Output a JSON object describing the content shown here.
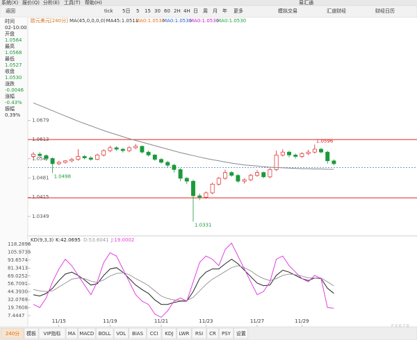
{
  "window": {
    "menu": [
      "系统(X)",
      "报价(Q)",
      "分析(E)",
      "工具(T)",
      "帮助(H)"
    ],
    "title": "易汇通"
  },
  "toolbar": {
    "back": "返回",
    "periods": [
      "tick",
      "5日",
      "5",
      "15",
      "30",
      "60",
      "2H",
      "4H",
      "日",
      "周",
      "月",
      "年",
      "更多"
    ],
    "links": [
      "模拟交易",
      "汇道财经",
      "财经日历"
    ]
  },
  "info_panel": {
    "rows": [
      {
        "label": "时间",
        "value": "02-10:00"
      },
      {
        "label": "开盘",
        "value": "1.0564"
      },
      {
        "label": "最高",
        "value": "1.0568"
      },
      {
        "label": "最低",
        "value": "1.0527"
      },
      {
        "label": "收盘",
        "value": "1.0530"
      },
      {
        "label": "涨跌",
        "value": "-0.0046"
      },
      {
        "label": "涨幅",
        "value": "-0.43%"
      },
      {
        "label": "振幅",
        "value": "0.39%"
      }
    ]
  },
  "chart_data": [
    {
      "type": "candlestick",
      "title": "欧元美元[240分]",
      "legend": [
        {
          "text": "MA(45,0,0,0,0)",
          "color": "#333333"
        },
        {
          "text": "MA45:1.0511",
          "color": "#333333"
        },
        {
          "text": "MA0:1.0530",
          "color": "#e07020"
        },
        {
          "text": "MA0:1.0530",
          "color": "#2060c0"
        },
        {
          "text": "MA0:1.0530",
          "color": "#c020c0"
        },
        {
          "text": "MA0:1.0530",
          "color": "#20a040"
        }
      ],
      "open": [
        1.0555,
        1.0563,
        1.0558,
        1.0548,
        1.053,
        1.0535,
        1.054,
        1.0545,
        1.0555,
        1.055,
        1.0545,
        1.056,
        1.0575,
        1.0585,
        1.058,
        1.0575,
        1.0585,
        1.059,
        1.057,
        1.056,
        1.0545,
        1.0535,
        1.0525,
        1.051,
        1.048,
        1.047,
        1.042,
        1.0415,
        1.043,
        1.046,
        1.048,
        1.05,
        1.049,
        1.047,
        1.0475,
        1.049,
        1.05,
        1.0485,
        1.051,
        1.056,
        1.057,
        1.056,
        1.0555,
        1.0565,
        1.057,
        1.058,
        1.057,
        1.054
      ],
      "high": [
        1.057,
        1.057,
        1.0562,
        1.0552,
        1.054,
        1.0542,
        1.055,
        1.058,
        1.056,
        1.0556,
        1.0565,
        1.058,
        1.0592,
        1.059,
        1.0584,
        1.059,
        1.0598,
        1.0592,
        1.0575,
        1.0563,
        1.055,
        1.054,
        1.053,
        1.0515,
        1.0485,
        1.0475,
        1.0428,
        1.0435,
        1.0465,
        1.0485,
        1.051,
        1.0505,
        1.0495,
        1.048,
        1.0495,
        1.0508,
        1.0503,
        1.0515,
        1.0575,
        1.058,
        1.0575,
        1.0565,
        1.057,
        1.0578,
        1.0596,
        1.0585,
        1.0575,
        1.0545
      ],
      "low": [
        1.055,
        1.0552,
        1.054,
        1.0498,
        1.0525,
        1.053,
        1.0535,
        1.054,
        1.0545,
        1.054,
        1.0542,
        1.0555,
        1.057,
        1.0575,
        1.0568,
        1.057,
        1.058,
        1.0565,
        1.0555,
        1.054,
        1.053,
        1.0518,
        1.05,
        1.047,
        1.046,
        1.0331,
        1.0405,
        1.041,
        1.0425,
        1.0455,
        1.0475,
        1.0485,
        1.0465,
        1.0462,
        1.047,
        1.0485,
        1.048,
        1.048,
        1.0505,
        1.0555,
        1.0552,
        1.0548,
        1.055,
        1.056,
        1.0565,
        1.0565,
        1.053,
        1.0525
      ],
      "close": [
        1.0563,
        1.0558,
        1.0548,
        1.053,
        1.0535,
        1.054,
        1.0545,
        1.0555,
        1.055,
        1.0545,
        1.056,
        1.0575,
        1.0585,
        1.058,
        1.0575,
        1.0585,
        1.059,
        1.057,
        1.056,
        1.0545,
        1.0535,
        1.0525,
        1.051,
        1.048,
        1.047,
        1.042,
        1.0415,
        1.043,
        1.046,
        1.048,
        1.05,
        1.049,
        1.047,
        1.0475,
        1.049,
        1.05,
        1.0485,
        1.051,
        1.056,
        1.057,
        1.056,
        1.0555,
        1.0565,
        1.057,
        1.058,
        1.057,
        1.054,
        1.053
      ],
      "up_color": "#e02020",
      "down_color": "#1a9a3a",
      "series": [
        {
          "color": "#888888",
          "values": [
            1.0739,
            1.073,
            1.0721,
            1.0712,
            1.0703,
            1.0694,
            1.0685,
            1.0676,
            1.0668,
            1.066,
            1.0652,
            1.0644,
            1.0637,
            1.063,
            1.0623,
            1.0616,
            1.061,
            1.0604,
            1.0598,
            1.0592,
            1.0586,
            1.058,
            1.0574,
            1.0568,
            1.0563,
            1.0558,
            1.0553,
            1.0548,
            1.0544,
            1.054,
            1.0536,
            1.0532,
            1.0529,
            1.0526,
            1.0524,
            1.0522,
            1.052,
            1.0518,
            1.0517,
            1.0516,
            1.0515,
            1.0514,
            1.0513,
            1.0513,
            1.0512,
            1.0512,
            1.0511,
            1.0511
          ]
        }
      ],
      "hlines": [
        {
          "value": 1.0613,
          "color": "#e02020"
        },
        {
          "value": 1.0413,
          "color": "#e02020"
        }
      ],
      "price_line": {
        "value": 1.0517,
        "color": "#5a8ac6"
      },
      "annotations": [
        {
          "index": 3,
          "value": 1.0498
        },
        {
          "index": 25,
          "value": 1.0331
        },
        {
          "index": 44,
          "value": 1.0596
        }
      ],
      "ylim": [
        1.0294,
        1.1009
      ],
      "yticks": [
        1.0679,
        1.0613,
        1.0547,
        1.0481,
        1.0415,
        1.0349
      ]
    },
    {
      "type": "line",
      "title": "KD(9,3,3)",
      "categories": [
        null,
        null,
        null,
        null,
        "11/15",
        null,
        null,
        null,
        null,
        null,
        null,
        null,
        "11/19",
        null,
        null,
        null,
        null,
        null,
        null,
        null,
        "11/21",
        null,
        null,
        null,
        null,
        null,
        null,
        "11/23",
        null,
        null,
        null,
        null,
        null,
        null,
        null,
        "11/27",
        null,
        null,
        null,
        null,
        null,
        null,
        "11/29",
        null,
        null,
        null,
        null,
        null
      ],
      "series": [
        {
          "name": "K:42.0695",
          "color": "#222222",
          "values": [
            40,
            38,
            42,
            50,
            62,
            72,
            75,
            70,
            63,
            55,
            57,
            70,
            80,
            82,
            75,
            65,
            55,
            48,
            42,
            32,
            25,
            25,
            28,
            30,
            30,
            45,
            65,
            75,
            80,
            80,
            88,
            95,
            88,
            78,
            68,
            58,
            54,
            55,
            70,
            78,
            75,
            70,
            65,
            62,
            66,
            65,
            50,
            42.0695
          ]
        },
        {
          "name": "D:53.6041",
          "color": "#999999",
          "values": [
            48,
            46,
            45,
            46,
            52,
            58,
            64,
            66,
            65,
            61,
            59,
            63,
            69,
            73,
            74,
            71,
            65,
            60,
            54,
            46,
            38,
            34,
            32,
            31,
            31,
            36,
            46,
            56,
            64,
            70,
            76,
            82,
            85,
            82,
            77,
            70,
            65,
            62,
            65,
            70,
            72,
            71,
            69,
            66,
            66,
            66,
            60,
            53.6041
          ]
        },
        {
          "name": "J:19.0002",
          "color": "#e040e0",
          "values": [
            25,
            20,
            35,
            60,
            80,
            95,
            85,
            70,
            55,
            40,
            60,
            90,
            105,
            100,
            80,
            60,
            40,
            30,
            25,
            10,
            5,
            15,
            30,
            35,
            30,
            60,
            90,
            100,
            95,
            85,
            110,
            120,
            100,
            80,
            60,
            40,
            45,
            60,
            95,
            100,
            85,
            75,
            65,
            60,
            70,
            65,
            20,
            19.0002
          ]
        }
      ],
      "ylim": [
        -8.7,
        125.8
      ],
      "yticks": [
        118.2896,
        105.9735,
        93.6574,
        81.3413,
        69.0252,
        56.7091,
        {
          "value": 44.393,
          "label": "44.3930"
        },
        32.0769,
        19.7608,
        7.4447
      ]
    }
  ],
  "tabs": [
    "240分",
    "模板",
    "VIP指标",
    "MA",
    "MACD",
    "BOLL",
    "VOL",
    "BIAS",
    "CCI",
    "KDJ",
    "LWR",
    "RSI",
    "CR",
    "PSY",
    "设置"
  ],
  "watermark": "FX678"
}
